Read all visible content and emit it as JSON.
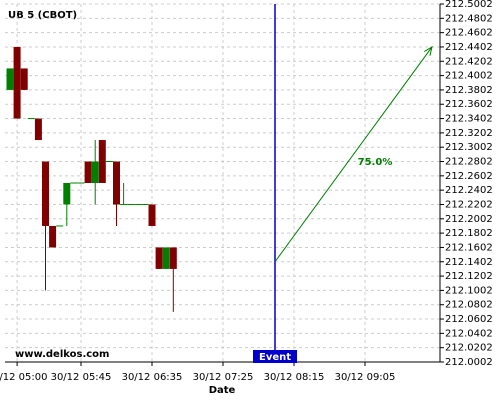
{
  "chart_data": {
    "type": "candlestick",
    "title": "UB 5 (CBOT)",
    "x_label": "Date",
    "watermark": "www.delkos.com",
    "categories": [
      null,
      "30/12 05:00",
      null,
      null,
      null,
      null,
      null,
      null,
      null,
      null,
      "30/12 05:45",
      null,
      null,
      null,
      null,
      null,
      null,
      null,
      null,
      null,
      "30/12 06:35",
      null,
      null,
      null,
      null,
      null,
      null,
      null,
      null,
      null,
      "30/12 07:25",
      null,
      null,
      null,
      null,
      null,
      null,
      null,
      null,
      null,
      "30/12 08:15",
      null,
      null,
      null,
      null,
      null,
      null,
      null,
      null,
      null,
      "30/12 09:05",
      null,
      null,
      null,
      null,
      null,
      null,
      null,
      null,
      null,
      null
    ],
    "open": [
      212.3802,
      212.4402,
      212.4102,
      212.3402,
      212.3402,
      212.2802,
      212.1902,
      212.1902,
      212.2202,
      212.2502,
      212.2502,
      212.2802,
      212.2502,
      212.3102,
      212.2802,
      212.2802,
      212.2202,
      212.2202,
      212.2202,
      212.2202,
      212.2202,
      212.1602,
      212.1302,
      212.1602,
      null,
      null,
      null,
      null,
      null,
      null,
      null,
      null,
      null,
      null,
      null,
      null,
      null,
      null,
      null,
      null,
      null,
      null,
      null,
      null,
      null,
      null,
      null,
      null,
      null,
      null,
      null,
      null,
      null,
      null,
      null,
      null,
      null,
      null,
      null,
      null,
      null
    ],
    "high": [
      212.4102,
      212.4402,
      212.4102,
      212.3402,
      212.3402,
      212.2802,
      212.1902,
      212.1902,
      212.2502,
      212.2502,
      212.2502,
      212.2802,
      212.3102,
      212.3102,
      212.2802,
      212.2802,
      212.2502,
      212.2202,
      212.2202,
      212.2202,
      212.2202,
      212.1602,
      212.1602,
      212.1602,
      null,
      null,
      null,
      null,
      null,
      null,
      null,
      null,
      null,
      null,
      null,
      null,
      null,
      null,
      null,
      null,
      null,
      null,
      null,
      null,
      null,
      null,
      null,
      null,
      null,
      null,
      null,
      null,
      null,
      null,
      null,
      null,
      null,
      null,
      null,
      null,
      null
    ],
    "low": [
      212.3802,
      212.3402,
      212.3802,
      212.3402,
      212.3102,
      212.1002,
      212.1602,
      212.1902,
      212.1902,
      212.2502,
      212.2502,
      212.2502,
      212.2202,
      212.2502,
      212.2802,
      212.1902,
      212.2202,
      212.2202,
      212.2202,
      212.2202,
      212.1902,
      212.1302,
      212.1302,
      212.0702,
      null,
      null,
      null,
      null,
      null,
      null,
      null,
      null,
      null,
      null,
      null,
      null,
      null,
      null,
      null,
      null,
      null,
      null,
      null,
      null,
      null,
      null,
      null,
      null,
      null,
      null,
      null,
      null,
      null,
      null,
      null,
      null,
      null,
      null,
      null,
      null,
      null
    ],
    "close": [
      212.4102,
      212.3402,
      212.3802,
      212.3402,
      212.3102,
      212.1902,
      212.1602,
      212.1902,
      212.2502,
      212.2502,
      212.2502,
      212.2502,
      212.2802,
      212.2502,
      212.2802,
      212.2202,
      212.2202,
      212.2202,
      212.2202,
      212.2202,
      212.1902,
      212.1302,
      212.1602,
      212.1302,
      null,
      null,
      null,
      null,
      null,
      null,
      null,
      null,
      null,
      null,
      null,
      null,
      null,
      null,
      null,
      null,
      null,
      null,
      null,
      null,
      null,
      null,
      null,
      null,
      null,
      null,
      null,
      null,
      null,
      null,
      null,
      null,
      null,
      null,
      null,
      null,
      null
    ],
    "up_color": "#008000",
    "down_color": "#800000",
    "ylim": [
      212.0002,
      212.5002
    ],
    "yticks": [
      212.0002,
      212.0202,
      212.0402,
      212.0602,
      212.0802,
      212.1002,
      212.1202,
      212.1402,
      212.1602,
      212.1802,
      212.2002,
      212.2202,
      212.2402,
      212.2602,
      212.2802,
      212.3002,
      212.3202,
      212.3402,
      212.3602,
      212.3802,
      212.4002,
      212.4202,
      212.4402,
      212.4602,
      212.4802,
      212.5002
    ],
    "grid": true,
    "event": {
      "label": "Event",
      "color": "#0000cc"
    },
    "projection": {
      "from": 212.1402,
      "to": 212.4402,
      "label": "75.0%",
      "color": "#008000"
    }
  }
}
